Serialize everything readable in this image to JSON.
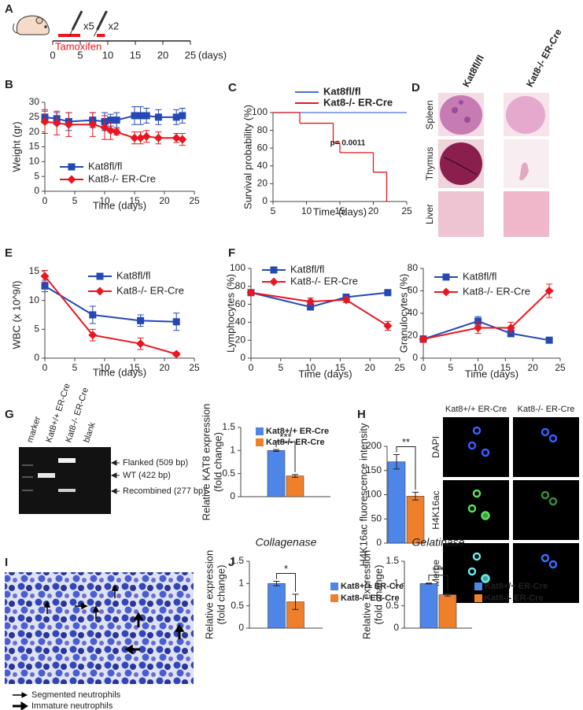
{
  "panel_letters": [
    "A",
    "B",
    "C",
    "D",
    "E",
    "F",
    "G",
    "H",
    "I",
    "J"
  ],
  "histology": {
    "columns": [
      "Kat8fl/fl",
      "Kat8-/- ER-Cre"
    ],
    "rows": [
      "Spleen",
      "Thymus",
      "Liver"
    ]
  },
  "gel": {
    "lanes": [
      "marker",
      "Kat8+/+ ER-Cre",
      "Kat8-/- ER-Cre",
      "blank"
    ],
    "bands": [
      "Flanked (509 bp)",
      "WT (422 bp)",
      "Recombined (277 bp)"
    ]
  },
  "immunofluorescence": {
    "columns": [
      "Kat8+/+ ER-Cre",
      "Kat8-/- ER-Cre"
    ],
    "rows": [
      "DAPI",
      "H4K16ac",
      "Merge"
    ]
  },
  "cytology": {
    "legend": [
      "Segmented neutrophils",
      "Immature neutrophils"
    ]
  },
  "chart_data": [
    {
      "type": "timeline",
      "xlim": [
        0,
        25
      ],
      "xticks": [
        0,
        5,
        10,
        15,
        20,
        25
      ],
      "xlabel": "(days)",
      "periods": [
        [
          1,
          5
        ],
        [
          8,
          9.5
        ]
      ],
      "period_label": "Tamoxifen",
      "doses": [
        "x5",
        "x2"
      ],
      "color": "#e8171f"
    },
    {
      "type": "line",
      "ylabel": "Weight (gr)",
      "xlabel": "Time (days)",
      "x": [
        0,
        2,
        4,
        8,
        10,
        11,
        12,
        15,
        16,
        17,
        19,
        22,
        23
      ],
      "xlim": [
        0,
        25
      ],
      "xticks": [
        0,
        5,
        10,
        15,
        20,
        25
      ],
      "ylim": [
        0,
        30
      ],
      "yticks": [
        0,
        5,
        10,
        15,
        20,
        25,
        30
      ],
      "series": [
        {
          "name": "Kat8fl/fl",
          "color": "#2448b5",
          "marker": "square",
          "values": [
            25,
            24.5,
            23.5,
            24,
            23.5,
            24,
            24,
            25.5,
            25.5,
            25.5,
            25,
            25,
            25.5
          ],
          "errors": [
            2,
            2,
            3,
            2.5,
            3,
            2,
            2.5,
            3,
            3,
            2.5,
            2.5,
            2.5,
            2.5
          ]
        },
        {
          "name": "Kat8-/- ER-Cre",
          "color": "#e8171f",
          "marker": "diamond",
          "values": [
            23.5,
            23,
            22.5,
            22.5,
            21.5,
            20.5,
            20,
            18,
            18,
            18.5,
            18,
            18,
            17.5
          ],
          "errors": [
            4,
            4,
            4,
            4,
            4,
            3,
            1,
            2,
            2,
            2,
            2,
            1.5,
            2
          ]
        }
      ]
    },
    {
      "type": "line",
      "step": true,
      "ylabel": "Survival probability (%)",
      "xlabel": "Time (days)",
      "xlim": [
        5,
        25
      ],
      "xticks": [
        5,
        10,
        15,
        20,
        25
      ],
      "ylim": [
        0,
        100
      ],
      "yticks": [
        0,
        20,
        40,
        60,
        80,
        100
      ],
      "annotation": "p= 0.0011",
      "series": [
        {
          "name": "Kat8fl/fl",
          "color": "#4a6fd8",
          "x": [
            5,
            25
          ],
          "values": [
            100,
            100
          ]
        },
        {
          "name": "Kat8-/- ER-Cre",
          "color": "#e8171f",
          "x": [
            5,
            9,
            14,
            15,
            20,
            22
          ],
          "values": [
            100,
            88,
            66,
            55,
            33,
            0
          ]
        }
      ]
    },
    {
      "type": "line",
      "ylabel": "WBC (x 10^9/l)",
      "xlabel": "Time (days)",
      "x": [
        0,
        8,
        16,
        22
      ],
      "xlim": [
        0,
        25
      ],
      "xticks": [
        0,
        5,
        10,
        15,
        20,
        25
      ],
      "ylim": [
        0,
        15
      ],
      "yticks": [
        0,
        5,
        10,
        15
      ],
      "series": [
        {
          "name": "Kat8fl/fl",
          "color": "#2448b5",
          "marker": "square",
          "values": [
            12.5,
            7.5,
            6.5,
            6.3
          ],
          "errors": [
            1,
            1.5,
            1,
            1.5
          ]
        },
        {
          "name": "Kat8-/- ER-Cre",
          "color": "#e8171f",
          "marker": "diamond",
          "values": [
            14.2,
            4,
            2.5,
            0.7
          ],
          "errors": [
            1,
            1,
            1,
            0.3
          ]
        }
      ]
    },
    {
      "type": "line",
      "ylabel": "Lymphocytes (%)",
      "xlabel": "Time (days)",
      "x": [
        0,
        10,
        16,
        23
      ],
      "xlim": [
        0,
        25
      ],
      "xticks": [
        0,
        5,
        10,
        15,
        20,
        25
      ],
      "ylim": [
        0,
        100
      ],
      "yticks": [
        0,
        20,
        40,
        60,
        80,
        100
      ],
      "series": [
        {
          "name": "Kat8fl/fl",
          "color": "#2448b5",
          "marker": "square",
          "values": [
            73,
            57,
            68,
            73
          ],
          "errors": [
            3,
            3,
            2,
            2
          ]
        },
        {
          "name": "Kat8-/- ER-Cre",
          "color": "#e8171f",
          "marker": "diamond",
          "values": [
            73,
            63,
            65,
            36
          ],
          "errors": [
            3,
            4,
            3,
            5
          ]
        }
      ]
    },
    {
      "type": "line",
      "ylabel": "Granulocytes (%)",
      "xlabel": "Time (days)",
      "x": [
        0,
        10,
        16,
        23
      ],
      "xlim": [
        0,
        25
      ],
      "xticks": [
        0,
        5,
        10,
        15,
        20,
        25
      ],
      "ylim": [
        0,
        80
      ],
      "yticks": [
        0,
        20,
        40,
        60,
        80
      ],
      "series": [
        {
          "name": "Kat8fl/fl",
          "color": "#2448b5",
          "marker": "square",
          "values": [
            17,
            33,
            22,
            16
          ],
          "errors": [
            3,
            4,
            3,
            2
          ]
        },
        {
          "name": "Kat8-/- ER-Cre",
          "color": "#e8171f",
          "marker": "diamond",
          "values": [
            17,
            27,
            27,
            60
          ],
          "errors": [
            3,
            5,
            5,
            6
          ]
        }
      ]
    },
    {
      "type": "bar",
      "ylabel": [
        "Relative KAT8 expression",
        "(fold change)"
      ],
      "ylim": [
        0,
        1.5
      ],
      "yticks": [
        0,
        0.5,
        1,
        1.5
      ],
      "annotation": "***",
      "series": [
        {
          "name": "Kat8+/+ ER-Cre",
          "color": "#4d86e8",
          "values": [
            1
          ],
          "errors": [
            0.02
          ]
        },
        {
          "name": "Kat8-/- ER-Cre",
          "color": "#f07f2c",
          "values": [
            0.45
          ],
          "errors": [
            0.03
          ]
        }
      ]
    },
    {
      "type": "bar",
      "ylabel": "H4K16ac fluorescence intensity",
      "ylim": [
        0,
        200
      ],
      "yticks": [
        0,
        50,
        100,
        150,
        200
      ],
      "annotation": "**",
      "values": [
        168,
        97
      ],
      "errors": [
        15,
        8
      ],
      "colors": [
        "#4d86e8",
        "#f07f2c"
      ]
    },
    {
      "type": "bar",
      "title": "Collagenase",
      "ylabel": [
        "Relative expression",
        "(fold change)"
      ],
      "ylim": [
        0,
        1.5
      ],
      "yticks": [
        0,
        0.5,
        1,
        1.5
      ],
      "annotation": "*",
      "series": [
        {
          "name": "Kat8+/+ ER-Cre",
          "color": "#4d86e8",
          "values": [
            1
          ],
          "errors": [
            0.05
          ]
        },
        {
          "name": "Kat8-/- ER-Cre",
          "color": "#f07f2c",
          "values": [
            0.59
          ],
          "errors": [
            0.17
          ]
        }
      ]
    },
    {
      "type": "bar",
      "title": "Gelatinase",
      "ylabel": [
        "Relative expression",
        "(fold change)"
      ],
      "ylim": [
        0,
        1.5
      ],
      "yticks": [
        0,
        0.5,
        1,
        1.5
      ],
      "annotation": "***",
      "series": [
        {
          "name": "Kat8+/+ ER-Cre",
          "color": "#4d86e8",
          "values": [
            1
          ],
          "errors": [
            0.01
          ]
        },
        {
          "name": "Kat8-/- ER-Cre",
          "color": "#f07f2c",
          "values": [
            0.75
          ],
          "errors": [
            0.03
          ]
        }
      ]
    }
  ]
}
